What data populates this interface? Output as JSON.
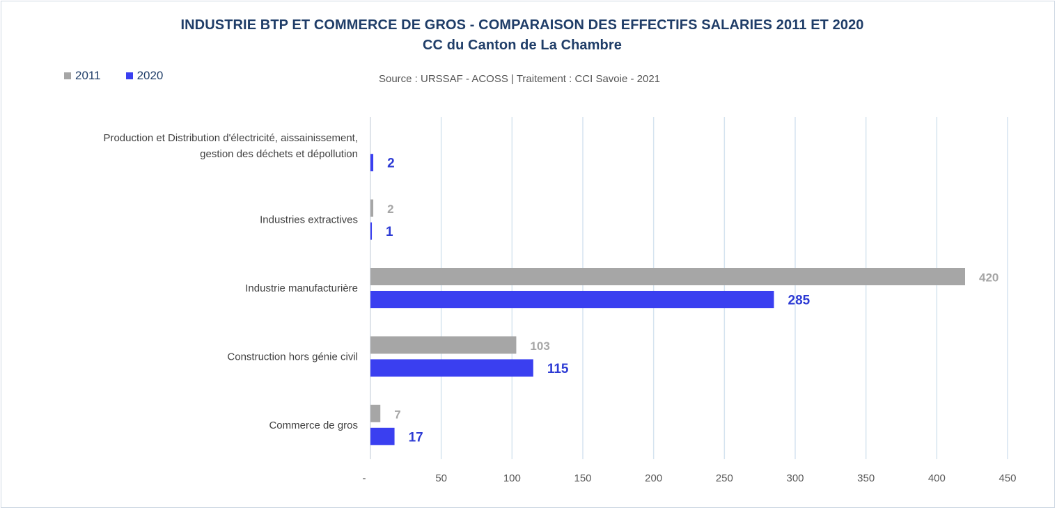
{
  "chart_data": {
    "type": "bar",
    "orientation": "horizontal",
    "title": "INDUSTRIE BTP ET COMMERCE DE GROS - COMPARAISON DES EFFECTIFS SALARIES 2011 ET 2020",
    "subtitle": "CC du Canton de La Chambre",
    "source": "Source : URSSAF - ACOSS  |  Traitement : CCI Savoie - 2021",
    "categories": [
      "Production et Distribution d'électricité, aissainissement, gestion des déchets et dépollution",
      "Industries extractives",
      "Industrie manufacturière",
      "Construction hors génie civil",
      "Commerce de gros"
    ],
    "series": [
      {
        "name": "2011",
        "color": "#a6a6a6",
        "values": [
          null,
          2,
          420,
          103,
          7
        ]
      },
      {
        "name": "2020",
        "color": "#3a3ff0",
        "values": [
          2,
          1,
          285,
          115,
          17
        ]
      }
    ],
    "xlim": [
      0,
      450
    ],
    "xticks": [
      "-",
      "50",
      "100",
      "150",
      "200",
      "250",
      "300",
      "350",
      "400",
      "450"
    ],
    "grid": true,
    "legend_position": "top-left"
  }
}
